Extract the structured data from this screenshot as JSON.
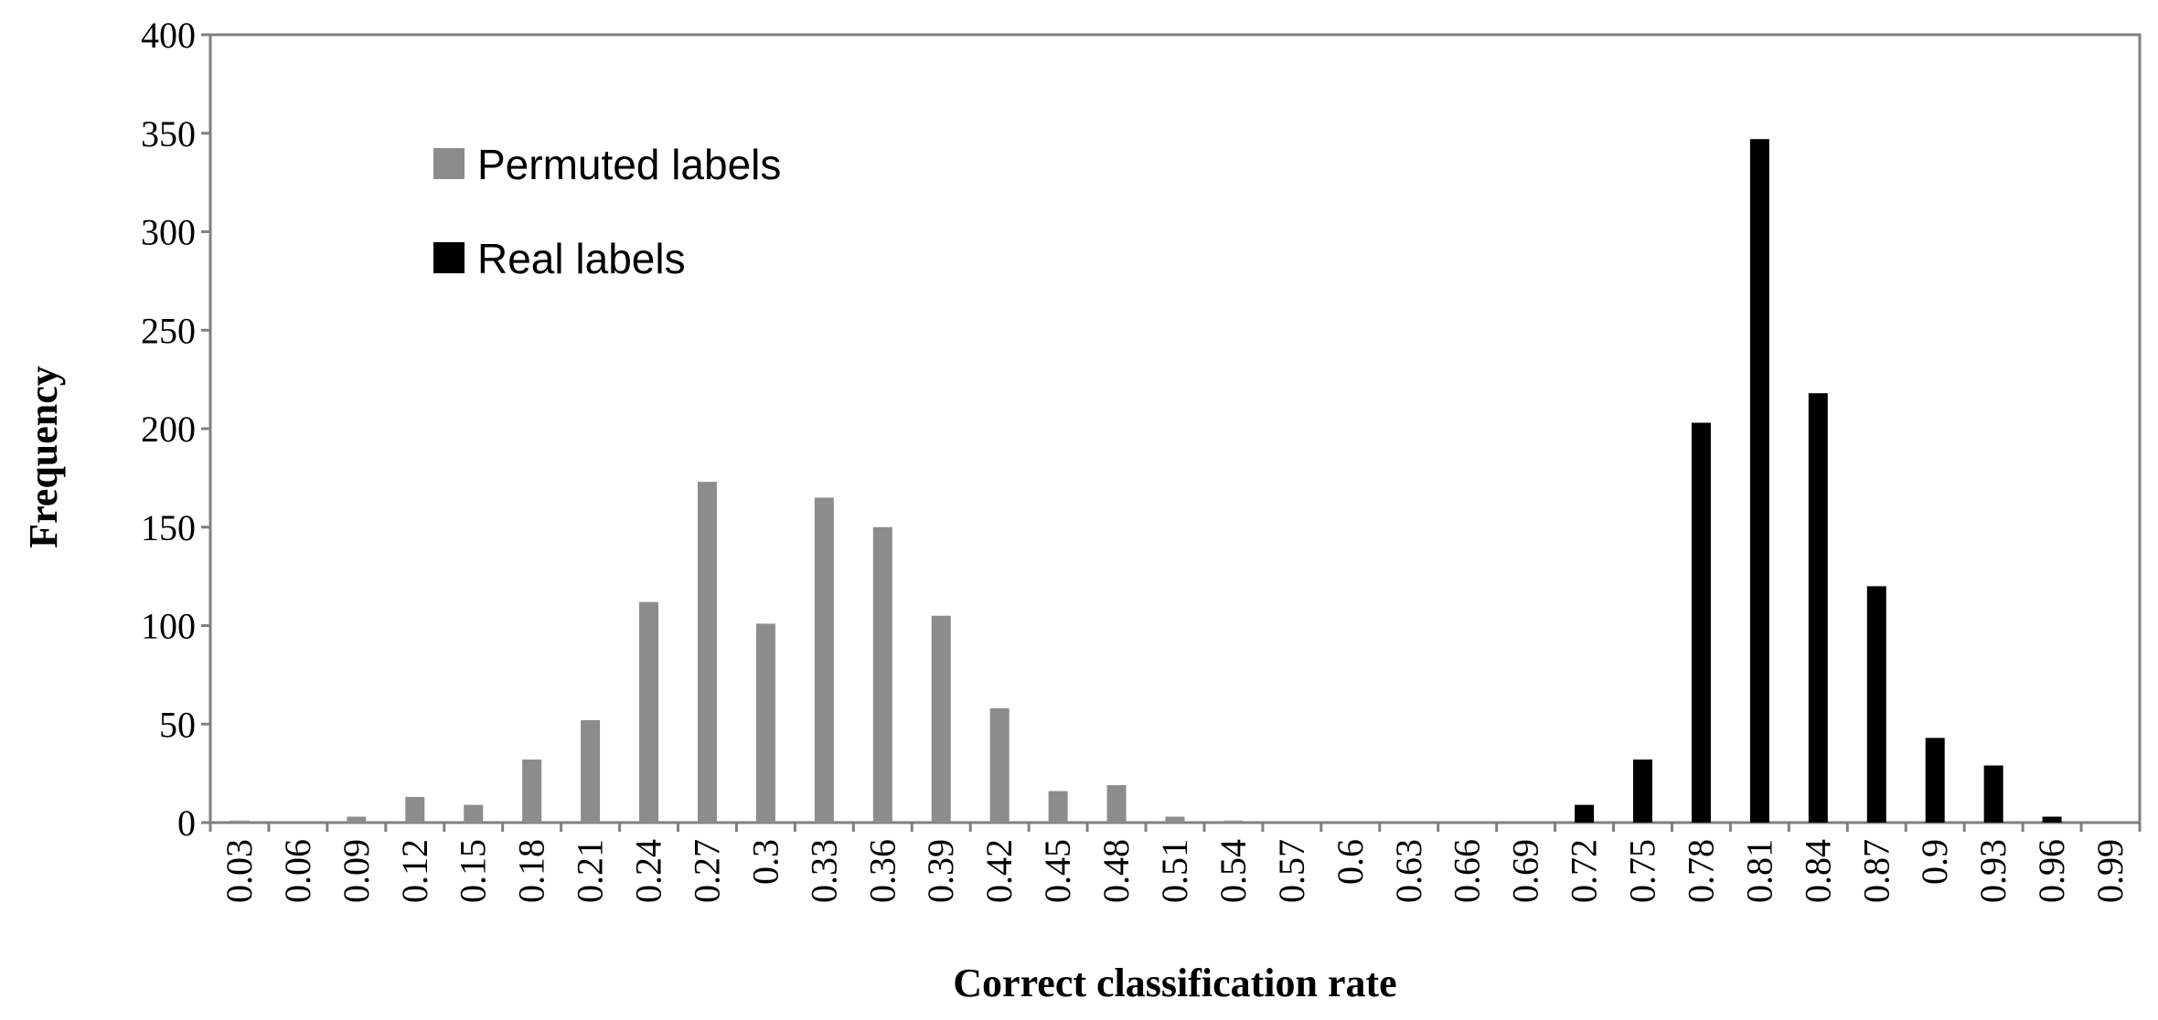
{
  "colors": {
    "permuted": "#8c8c8c",
    "real": "#000000",
    "frame": "#7f7f7f"
  },
  "chart_data": {
    "type": "bar",
    "xlabel": "Correct classification rate",
    "ylabel": "Frequency",
    "ylim": [
      0,
      400
    ],
    "yticks": [
      "0",
      "50",
      "100",
      "150",
      "200",
      "250",
      "300",
      "350",
      "400"
    ],
    "grid": false,
    "legend_position": "top-left",
    "categories": [
      "0.03",
      "0.06",
      "0.09",
      "0.12",
      "0.15",
      "0.18",
      "0.21",
      "0.24",
      "0.27",
      "0.3",
      "0.33",
      "0.36",
      "0.39",
      "0.42",
      "0.45",
      "0.48",
      "0.51",
      "0.54",
      "0.57",
      "0.6",
      "0.63",
      "0.66",
      "0.69",
      "0.72",
      "0.75",
      "0.78",
      "0.81",
      "0.84",
      "0.87",
      "0.9",
      "0.93",
      "0.96",
      "0.99"
    ],
    "series": [
      {
        "name": "Permuted labels",
        "values": [
          1,
          0,
          3,
          13,
          9,
          32,
          52,
          112,
          173,
          101,
          165,
          150,
          105,
          58,
          16,
          19,
          3,
          1,
          0,
          0,
          0,
          0,
          0,
          0,
          0,
          0,
          0,
          0,
          0,
          0,
          0,
          0,
          0
        ]
      },
      {
        "name": "Real labels",
        "values": [
          0,
          0,
          0,
          0,
          0,
          0,
          0,
          0,
          0,
          0,
          0,
          0,
          0,
          0,
          0,
          0,
          0,
          0,
          0,
          0,
          0,
          0,
          0,
          9,
          32,
          203,
          347,
          218,
          120,
          43,
          29,
          3,
          0
        ]
      }
    ]
  }
}
